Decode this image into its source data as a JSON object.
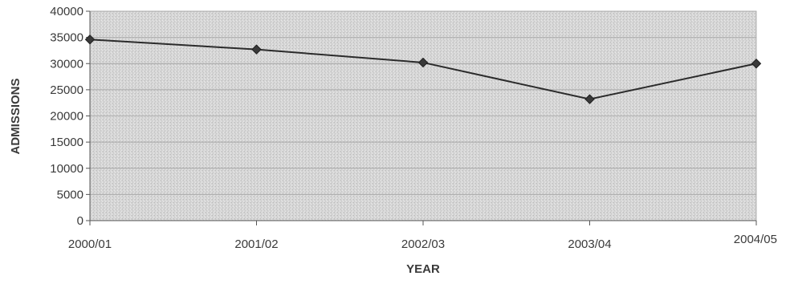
{
  "chart_data": {
    "type": "line",
    "title": "",
    "xlabel": "YEAR",
    "ylabel": "ADMISSIONS",
    "categories": [
      "2000/01",
      "2001/02",
      "2002/03",
      "2003/04",
      "2004/05"
    ],
    "series": [
      {
        "values": [
          34600,
          32700,
          30200,
          23200,
          30000
        ],
        "color": "#2b2b2b",
        "marker": "diamond"
      }
    ],
    "ylim": [
      0,
      40000
    ],
    "y_ticks": [
      0,
      5000,
      10000,
      15000,
      20000,
      25000,
      30000,
      35000,
      40000
    ],
    "grid": true,
    "legend": "none",
    "plot_background": "#d9d9d9",
    "gridline_color": "#a8a8a8"
  }
}
